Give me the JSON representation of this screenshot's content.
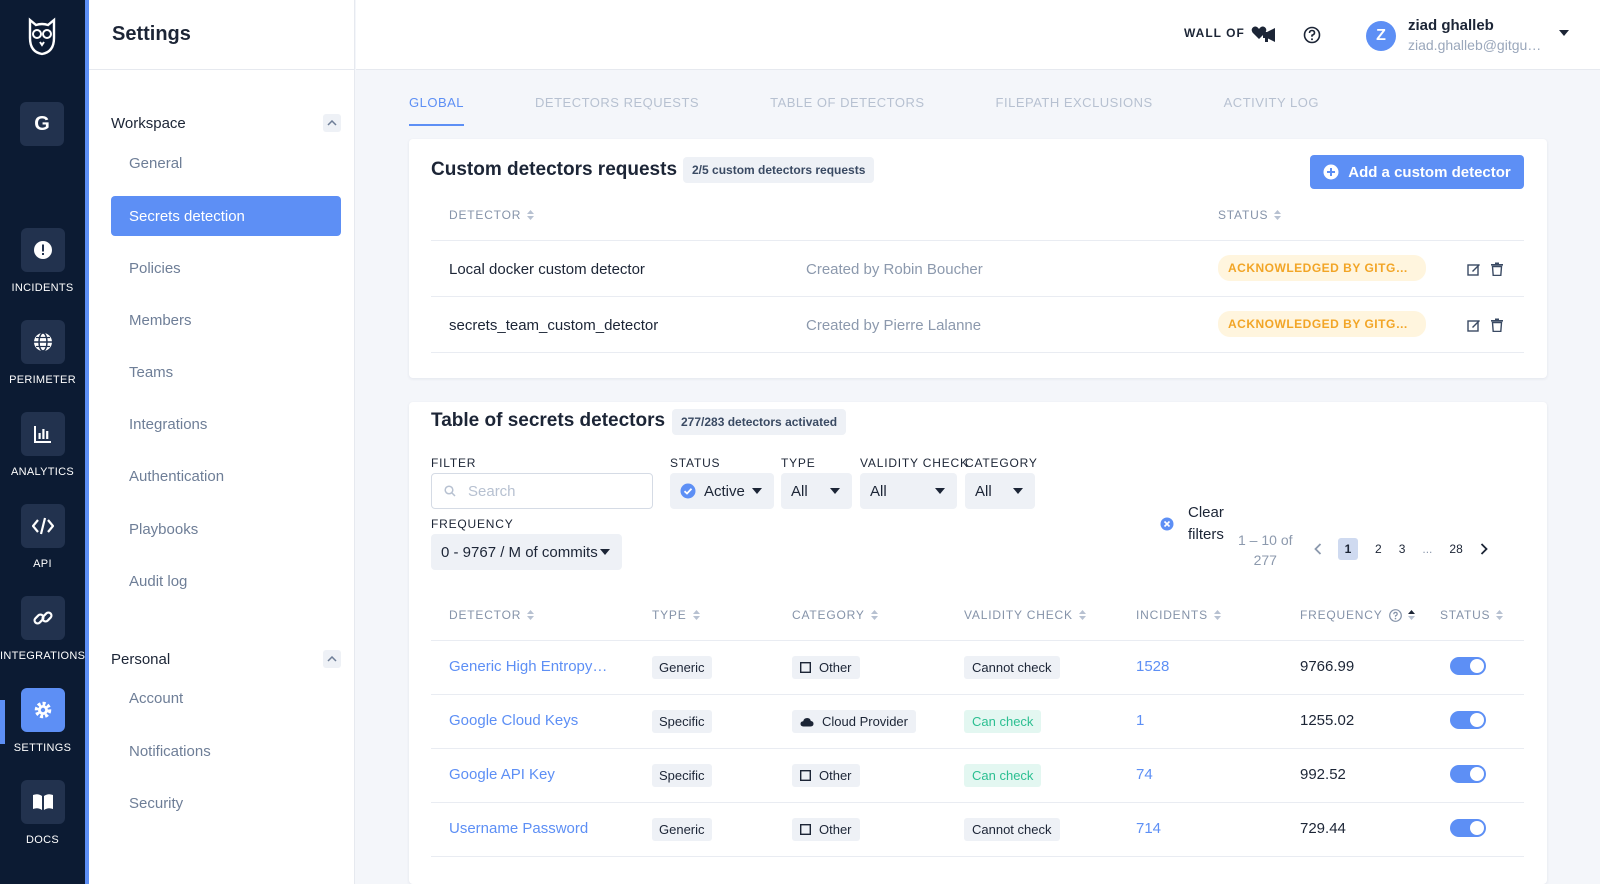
{
  "rail": {
    "workspace_initial": "G",
    "items": [
      {
        "label": "INCIDENTS",
        "icon": "alert-icon"
      },
      {
        "label": "PERIMETER",
        "icon": "globe-icon"
      },
      {
        "label": "ANALYTICS",
        "icon": "chart-icon"
      },
      {
        "label": "API",
        "icon": "code-icon"
      },
      {
        "label": "INTEGRATIONS",
        "icon": "link-icon"
      },
      {
        "label": "SETTINGS",
        "icon": "gear-icon"
      },
      {
        "label": "DOCS",
        "icon": "book-icon"
      }
    ]
  },
  "settings": {
    "title": "Settings",
    "workspace_section": "Workspace",
    "workspace_items": [
      "General",
      "Secrets detection",
      "Policies",
      "Members",
      "Teams",
      "Integrations",
      "Authentication",
      "Playbooks",
      "Audit log"
    ],
    "personal_section": "Personal",
    "personal_items": [
      "Account",
      "Notifications",
      "Security"
    ]
  },
  "topbar": {
    "wall_of": "WALL OF",
    "user_initial": "Z",
    "user_name": "ziad ghalleb",
    "user_email": "ziad.ghalleb@gitguardian.com"
  },
  "tabs": [
    "GLOBAL",
    "DETECTORS REQUESTS",
    "TABLE OF DETECTORS",
    "FILEPATH EXCLUSIONS",
    "ACTIVITY LOG"
  ],
  "custom_requests": {
    "title": "Custom detectors requests",
    "count_chip": "2/5 custom detectors requests",
    "add_button": "Add a custom detector",
    "col_detector": "DETECTOR",
    "col_status": "STATUS",
    "rows": [
      {
        "name": "Local docker custom detector",
        "created_by": "Created by Robin Boucher",
        "status": "ACKNOWLEDGED BY GITGUARDIAN"
      },
      {
        "name": "secrets_team_custom_detector",
        "created_by": "Created by Pierre Lalanne",
        "status": "ACKNOWLEDGED BY GITGUARDIAN"
      }
    ]
  },
  "detectors_table": {
    "title": "Table of secrets detectors",
    "count_chip": "277/283 detectors activated",
    "filters": {
      "filter_label": "FILTER",
      "search_placeholder": "Search",
      "status_label": "STATUS",
      "status_value": "Active",
      "type_label": "TYPE",
      "type_value": "All",
      "validity_label": "VALIDITY CHECK",
      "validity_value": "All",
      "category_label": "CATEGORY",
      "category_value": "All",
      "frequency_label": "FREQUENCY",
      "frequency_value": "0 - 9767 / M of commits",
      "clear_line1": "Clear",
      "clear_line2": "filters"
    },
    "pagination": {
      "range_line1": "1 – 10  of",
      "range_line2": "277",
      "pages": [
        "1",
        "2",
        "3",
        "...",
        "28"
      ]
    },
    "columns": [
      "DETECTOR",
      "TYPE",
      "CATEGORY",
      "VALIDITY CHECK",
      "INCIDENTS",
      "FREQUENCY",
      "STATUS"
    ],
    "rows": [
      {
        "detector": "Generic High Entropy Secret",
        "type": "Generic",
        "category": "Other",
        "category_icon": "square-icon",
        "validity": "Cannot check",
        "validity_ok": false,
        "incidents": "1528",
        "frequency": "9766.99",
        "enabled": true
      },
      {
        "detector": "Google Cloud Keys",
        "type": "Specific",
        "category": "Cloud Provider",
        "category_icon": "cloud-icon",
        "validity": "Can check",
        "validity_ok": true,
        "incidents": "1",
        "frequency": "1255.02",
        "enabled": true
      },
      {
        "detector": "Google API Key",
        "type": "Specific",
        "category": "Other",
        "category_icon": "square-icon",
        "validity": "Can check",
        "validity_ok": true,
        "incidents": "74",
        "frequency": "992.52",
        "enabled": true
      },
      {
        "detector": "Username Password",
        "type": "Generic",
        "category": "Other",
        "category_icon": "square-icon",
        "validity": "Cannot check",
        "validity_ok": false,
        "incidents": "714",
        "frequency": "729.44",
        "enabled": true
      }
    ]
  },
  "colors": {
    "accent": "#5d8ff5",
    "rail_bg": "#0c1b33",
    "warning": "#f2a526",
    "success": "#2bbf91"
  }
}
